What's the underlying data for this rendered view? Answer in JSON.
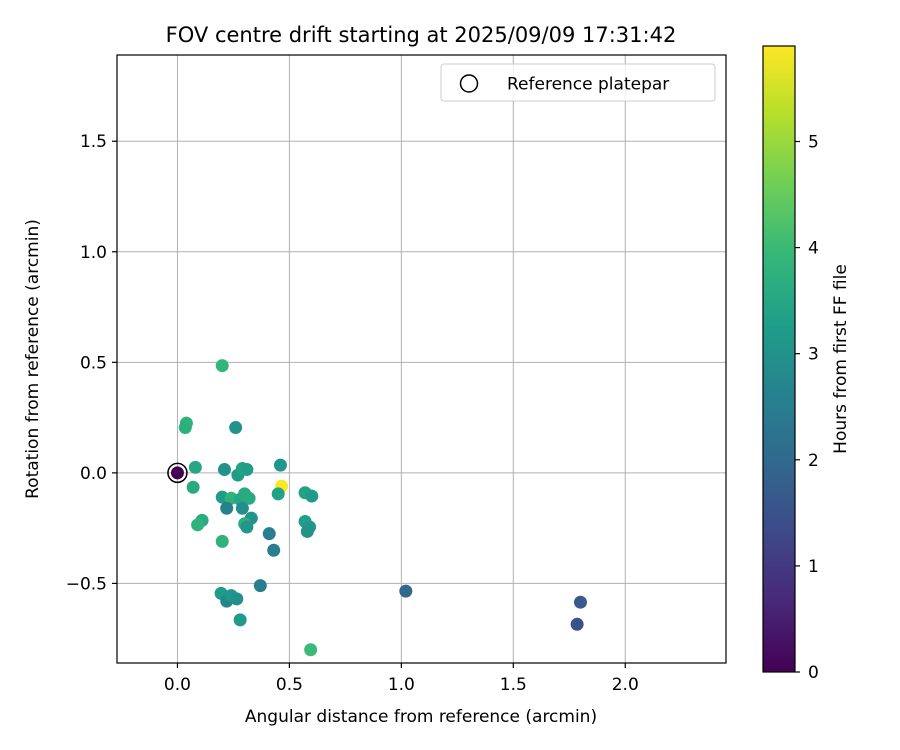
{
  "chart_data": {
    "type": "scatter",
    "title": "FOV centre drift starting at 2025/09/09 17:31:42",
    "xlabel": "Angular distance from reference (arcmin)",
    "ylabel": "Rotation from reference (arcmin)",
    "xlim": [
      -0.27,
      2.45
    ],
    "ylim": [
      -0.86,
      1.89
    ],
    "xticks": [
      0.0,
      0.5,
      1.0,
      1.5,
      2.0
    ],
    "xtick_labels": [
      "0.0",
      "0.5",
      "1.0",
      "1.5",
      "2.0"
    ],
    "yticks": [
      -0.5,
      0.0,
      0.5,
      1.0,
      1.5
    ],
    "ytick_labels": [
      "−0.5",
      "0.0",
      "0.5",
      "1.0",
      "1.5"
    ],
    "grid": true,
    "legend": {
      "location": "top-right",
      "entries": [
        "Reference platepar"
      ]
    },
    "colorbar": {
      "label": "Hours from first FF file",
      "range": [
        0,
        5.9
      ],
      "ticks": [
        0,
        1,
        2,
        3,
        4,
        5
      ],
      "tick_labels": [
        "0",
        "1",
        "2",
        "3",
        "4",
        "5"
      ],
      "colormap": [
        "#440154",
        "#482878",
        "#3e4989",
        "#31688e",
        "#26828e",
        "#1f9e89",
        "#35b779",
        "#6ece58",
        "#b5de2b",
        "#fde725"
      ]
    },
    "reference_point": {
      "x": 0.0,
      "y": 0.0,
      "hours": 0.0
    },
    "points": [
      {
        "x": 0.0,
        "y": 0.0,
        "hours": 0.0
      },
      {
        "x": 1.02,
        "y": -0.535,
        "hours": 2.0
      },
      {
        "x": 1.785,
        "y": -0.685,
        "hours": 1.5
      },
      {
        "x": 1.8,
        "y": -0.585,
        "hours": 1.7
      },
      {
        "x": 0.2,
        "y": 0.485,
        "hours": 3.9
      },
      {
        "x": 0.04,
        "y": 0.225,
        "hours": 3.8
      },
      {
        "x": 0.035,
        "y": 0.205,
        "hours": 3.7
      },
      {
        "x": 0.26,
        "y": 0.205,
        "hours": 3.0
      },
      {
        "x": 0.08,
        "y": 0.025,
        "hours": 3.5
      },
      {
        "x": 0.07,
        "y": -0.065,
        "hours": 3.6
      },
      {
        "x": 0.21,
        "y": 0.015,
        "hours": 3.0
      },
      {
        "x": 0.27,
        "y": -0.01,
        "hours": 3.2
      },
      {
        "x": 0.29,
        "y": 0.02,
        "hours": 3.4
      },
      {
        "x": 0.31,
        "y": 0.015,
        "hours": 3.3
      },
      {
        "x": 0.46,
        "y": 0.035,
        "hours": 3.1
      },
      {
        "x": 0.465,
        "y": -0.06,
        "hours": 5.9
      },
      {
        "x": 0.45,
        "y": -0.095,
        "hours": 3.4
      },
      {
        "x": 0.2,
        "y": -0.11,
        "hours": 3.2
      },
      {
        "x": 0.24,
        "y": -0.115,
        "hours": 3.8
      },
      {
        "x": 0.28,
        "y": -0.12,
        "hours": 3.5
      },
      {
        "x": 0.3,
        "y": -0.095,
        "hours": 3.6
      },
      {
        "x": 0.32,
        "y": -0.115,
        "hours": 3.6
      },
      {
        "x": 0.22,
        "y": -0.16,
        "hours": 2.6
      },
      {
        "x": 0.29,
        "y": -0.16,
        "hours": 2.9
      },
      {
        "x": 0.33,
        "y": -0.205,
        "hours": 3.0
      },
      {
        "x": 0.11,
        "y": -0.215,
        "hours": 3.6
      },
      {
        "x": 0.09,
        "y": -0.235,
        "hours": 3.8
      },
      {
        "x": 0.3,
        "y": -0.23,
        "hours": 3.7
      },
      {
        "x": 0.31,
        "y": -0.245,
        "hours": 3.1
      },
      {
        "x": 0.2,
        "y": -0.31,
        "hours": 3.8
      },
      {
        "x": 0.41,
        "y": -0.275,
        "hours": 2.5
      },
      {
        "x": 0.43,
        "y": -0.35,
        "hours": 2.5
      },
      {
        "x": 0.57,
        "y": -0.09,
        "hours": 3.4
      },
      {
        "x": 0.6,
        "y": -0.105,
        "hours": 3.2
      },
      {
        "x": 0.57,
        "y": -0.22,
        "hours": 3.3
      },
      {
        "x": 0.59,
        "y": -0.245,
        "hours": 3.1
      },
      {
        "x": 0.58,
        "y": -0.265,
        "hours": 3.0
      },
      {
        "x": 0.37,
        "y": -0.51,
        "hours": 2.5
      },
      {
        "x": 0.195,
        "y": -0.545,
        "hours": 3.2
      },
      {
        "x": 0.22,
        "y": -0.58,
        "hours": 2.7
      },
      {
        "x": 0.24,
        "y": -0.555,
        "hours": 3.1
      },
      {
        "x": 0.265,
        "y": -0.57,
        "hours": 2.9
      },
      {
        "x": 0.28,
        "y": -0.665,
        "hours": 3.2
      },
      {
        "x": 0.595,
        "y": -0.8,
        "hours": 4.0
      }
    ]
  }
}
